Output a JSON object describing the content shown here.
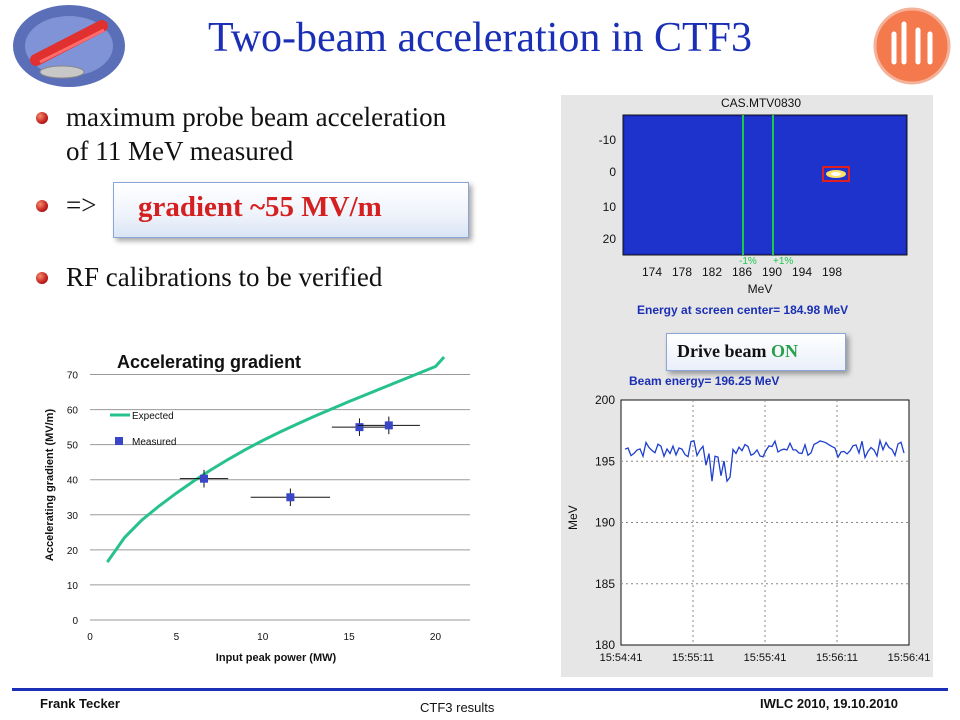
{
  "title": "Two-beam acceleration in CTF3",
  "bullets": [
    {
      "line1": "maximum probe beam acceleration",
      "line2": "of 11 MeV measured"
    },
    {
      "line1": "=>"
    },
    {
      "line1": "RF calibrations to be verified"
    }
  ],
  "highlight": "gradient ~55 MV/m",
  "drive_beam": {
    "label": "Drive beam",
    "state": "ON",
    "state_color": "#2aa04a"
  },
  "screen_panel": {
    "title": "CAS.MTV0830",
    "energy_caption": "Energy at screen center= 184.98 MeV",
    "beam_energy_caption": "Beam energy= 196.25 MeV",
    "y_ticks": [
      "-10",
      "0",
      "10",
      "20"
    ],
    "x_ticks": [
      "174",
      "178",
      "182",
      "186",
      "190",
      "194",
      "198"
    ],
    "x_unit": "MeV",
    "marker_labels": [
      "-1%",
      "+1%"
    ]
  },
  "energy_plot": {
    "y_label": "MeV",
    "y_ticks": [
      "200",
      "195",
      "190",
      "185",
      "180"
    ],
    "x_ticks": [
      "15:54:41",
      "15:55:11",
      "15:55:41",
      "15:56:11",
      "15:56:41"
    ]
  },
  "chart_data": {
    "type": "scatter",
    "title": "Accelerating gradient",
    "xlabel": "Input peak power (MW)",
    "ylabel": "Accelerating gradient (MV/m)",
    "xlim": [
      0,
      22
    ],
    "ylim": [
      0,
      75
    ],
    "x_ticks": [
      "0",
      "5",
      "10",
      "15",
      "20"
    ],
    "y_ticks": [
      "0",
      "10",
      "20",
      "30",
      "40",
      "50",
      "60",
      "70"
    ],
    "grid": "horizontal",
    "legend": "upper-left",
    "series": [
      {
        "name": "Expected",
        "style": "line",
        "color": "#27c28c",
        "x": [
          1,
          2,
          3,
          4,
          5,
          6,
          7,
          8,
          9,
          10,
          11,
          12,
          13,
          14,
          15,
          16,
          17,
          18,
          19,
          20,
          20.5
        ],
        "y": [
          16.5,
          23.5,
          28.5,
          32.5,
          36.2,
          39.6,
          42.8,
          45.8,
          48.6,
          51.2,
          53.6,
          55.9,
          58.1,
          60.2,
          62.3,
          64.3,
          66.3,
          68.3,
          70.3,
          72.3,
          75
        ]
      },
      {
        "name": "Measured",
        "style": "marker",
        "color": "#3a46c8",
        "points": [
          {
            "x": 6.6,
            "y": 40.3,
            "xerr": 1.4,
            "yerr": 2.5
          },
          {
            "x": 11.6,
            "y": 35.0,
            "xerr": 2.3,
            "yerr": 2.5
          },
          {
            "x": 15.6,
            "y": 55.0,
            "xerr": 1.6,
            "yerr": 2.5
          },
          {
            "x": 17.3,
            "y": 55.5,
            "xerr": 1.8,
            "yerr": 2.5
          }
        ]
      }
    ]
  },
  "footer": {
    "left": "Frank Tecker",
    "center": "CTF3 results",
    "right": "IWLC 2010, 19.10.2010"
  }
}
